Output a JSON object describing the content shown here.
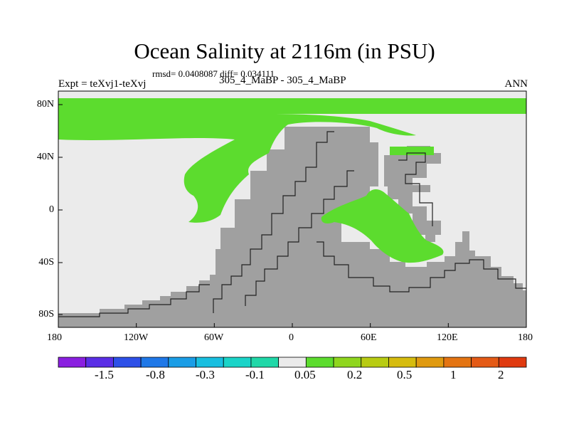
{
  "title": "Ocean Salinity at 2116m (in PSU)",
  "rmsd_line": "rmsd= 0.0408087 diff= 0.034111",
  "expt_label": "Expt = teXvj1-teXvj",
  "case_label": "305_4_MaBP - 305_4_MaBP",
  "season": "ANN",
  "x_ticks": [
    "180",
    "120W",
    "60W",
    "0",
    "60E",
    "120E",
    "180"
  ],
  "y_ticks": [
    "80N",
    "40N",
    "0",
    "40S",
    "80S"
  ],
  "colorbar": {
    "colors": [
      "#8a1fe0",
      "#5a2ee6",
      "#2d50e8",
      "#1f78e8",
      "#1a9de6",
      "#18bfe0",
      "#1ad4c8",
      "#20d8a8",
      "#ebebeb",
      "#5cdc2e",
      "#8fd61e",
      "#b8cc12",
      "#d6bc0e",
      "#e09a10",
      "#e47412",
      "#e45a16",
      "#e03a10"
    ],
    "labels": [
      "-1.5",
      "-0.8",
      "-0.3",
      "-0.1",
      "0.05",
      "0.2",
      "0.5",
      "1",
      "2"
    ]
  },
  "legend_colors": {
    "land": "#a0a0a0",
    "near_zero": "#ebebeb",
    "positive": "#5cdc2e"
  }
}
